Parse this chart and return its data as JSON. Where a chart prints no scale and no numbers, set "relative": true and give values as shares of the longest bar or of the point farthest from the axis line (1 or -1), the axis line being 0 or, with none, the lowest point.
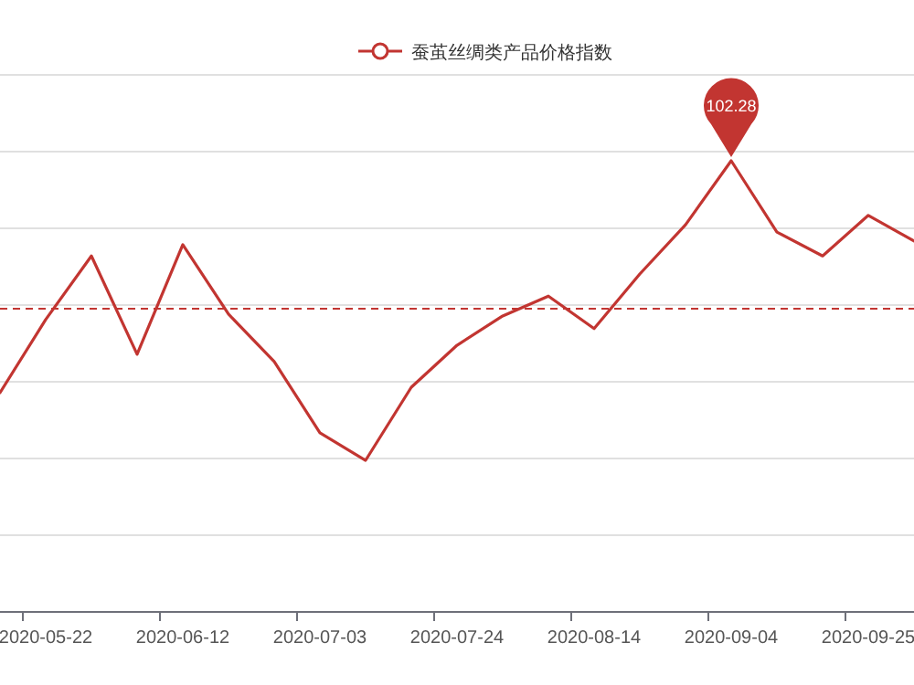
{
  "chart_data": {
    "type": "line",
    "relative": true,
    "categories": [
      null,
      "2020-05-22",
      null,
      null,
      "2020-06-12",
      null,
      null,
      "2020-07-03",
      null,
      null,
      "2020-07-24",
      null,
      null,
      "2020-08-14",
      null,
      null,
      "2020-09-04",
      null,
      null,
      "2020-09-25",
      null
    ],
    "series": [
      {
        "name": "蚕茧丝绸类产品价格指数",
        "color": "#c23531",
        "values": [
          0.486,
          0.648,
          0.789,
          0.571,
          0.814,
          0.66,
          0.555,
          0.397,
          0.336,
          0.498,
          0.591,
          0.656,
          0.7,
          0.628,
          0.749,
          0.858,
          1,
          0.842,
          0.789,
          0.879,
          0.822
        ]
      }
    ],
    "annotations": [
      {
        "text": "102.28",
        "x": "2020-09-04",
        "y": 1
      }
    ],
    "ref_lines": [
      {
        "axis": "y",
        "value": 0.672,
        "color": "#c23531",
        "line_style": "dashed"
      }
    ],
    "grid": "y",
    "legend": "top",
    "marker": "none",
    "line_style": "solid"
  }
}
